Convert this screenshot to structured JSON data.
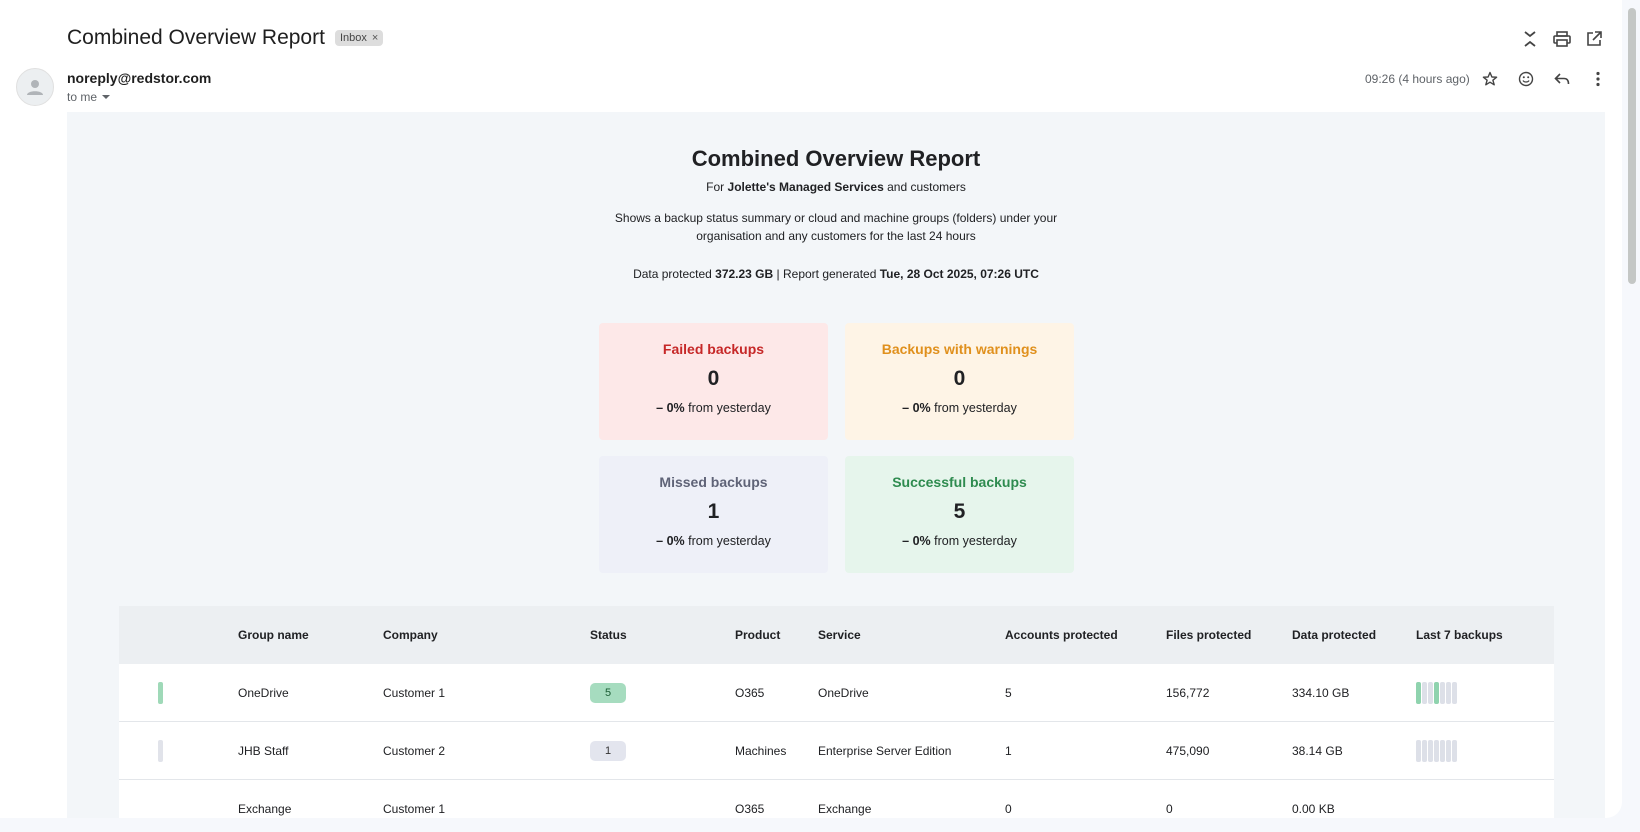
{
  "email": {
    "subject": "Combined Overview Report",
    "label_chip": "Inbox",
    "label_chip_remove": "×",
    "sender": "noreply@redstor.com",
    "to": "to me",
    "time": "09:26 (4 hours ago)"
  },
  "report": {
    "title": "Combined Overview Report",
    "for_prefix": "For ",
    "org": "Jolette's Managed Services",
    "for_suffix": " and customers",
    "description": "Shows a backup status summary or cloud and machine groups (folders) under your organisation and any customers for the last 24 hours",
    "data_protected_label": "Data protected ",
    "data_protected": "372.23 GB",
    "generated_label": " | Report generated ",
    "generated": "Tue, 28 Oct 2025, 07:26 UTC"
  },
  "cards": [
    {
      "title": "Failed backups",
      "value": "0",
      "delta_symbol": "–",
      "delta": "0%",
      "delta_suffix": " from yesterday",
      "color": "#c62828"
    },
    {
      "title": "Backups with warnings",
      "value": "0",
      "delta_symbol": "–",
      "delta": "0%",
      "delta_suffix": " from yesterday",
      "color": "#e0901d"
    },
    {
      "title": "Missed backups",
      "value": "1",
      "delta_symbol": "–",
      "delta": "0%",
      "delta_suffix": " from yesterday",
      "color": "#5f6377"
    },
    {
      "title": "Successful backups",
      "value": "5",
      "delta_symbol": "–",
      "delta": "0%",
      "delta_suffix": " from yesterday",
      "color": "#2e8b4f"
    }
  ],
  "table": {
    "headers": [
      "Group name",
      "Company",
      "Status",
      "Product",
      "Service",
      "Accounts protected",
      "Files protected",
      "Data protected",
      "Last 7 backups"
    ],
    "rows": [
      {
        "group": "OneDrive",
        "company": "Customer 1",
        "status": "5",
        "product": "O365",
        "service": "OneDrive",
        "accounts": "5",
        "files": "156,772",
        "data": "334.10 GB",
        "bar_color": "#9fd9b8",
        "badge_color": "#a6dcbf"
      },
      {
        "group": "JHB Staff",
        "company": "Customer 2",
        "status": "1",
        "product": "Machines",
        "service": "Enterprise Server Edition",
        "accounts": "1",
        "files": "475,090",
        "data": "38.14 GB",
        "bar_color": "#e1e3ea",
        "badge_color": "#e3e5ee"
      },
      {
        "group": "Exchange",
        "company": "Customer 1",
        "status": "",
        "product": "O365",
        "service": "Exchange",
        "accounts": "0",
        "files": "0",
        "data": "0.00 KB",
        "bar_color": "",
        "badge_color": ""
      }
    ]
  }
}
